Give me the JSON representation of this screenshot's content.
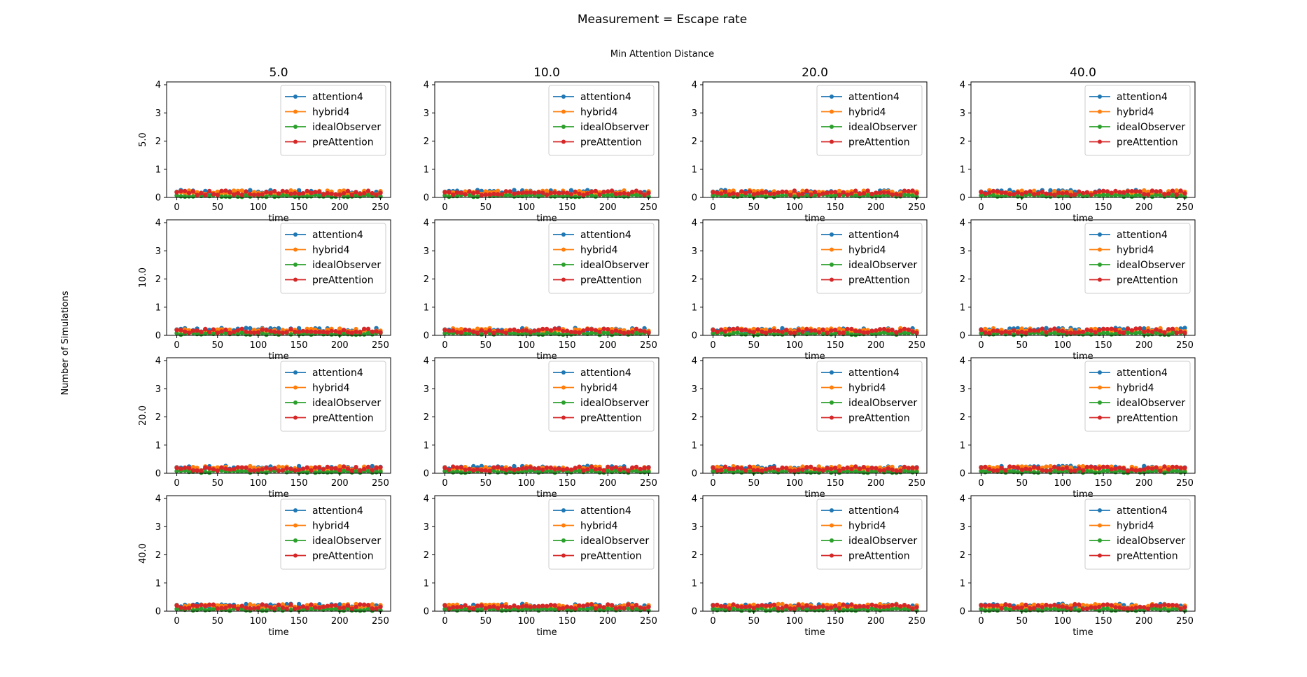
{
  "figure": {
    "suptitle": "Measurement = Escape rate",
    "column_header": "Min Attention Distance",
    "row_label": "Number of Simulations"
  },
  "chart_data": {
    "type": "line",
    "layout": "grid",
    "column_titles": [
      "5.0",
      "10.0",
      "20.0",
      "40.0"
    ],
    "row_titles": [
      "5.0",
      "10.0",
      "20.0",
      "40.0"
    ],
    "xlabel": "time",
    "xlim": [
      -12.5,
      262.5
    ],
    "ylim": [
      0,
      4.1
    ],
    "xticks": [
      0,
      50,
      100,
      150,
      200,
      250
    ],
    "yticks": [
      0,
      1,
      2,
      3,
      4
    ],
    "legend_position": "upper right",
    "series": [
      {
        "name": "attention4",
        "color": "#1f77b4"
      },
      {
        "name": "hybrid4",
        "color": "#ff7f0e"
      },
      {
        "name": "idealObserver",
        "color": "#2ca02c"
      },
      {
        "name": "preAttention",
        "color": "#d62728"
      }
    ],
    "x_sampling": {
      "start": 0,
      "end": 250,
      "step": 5
    },
    "value_summary": {
      "attention4": {
        "typical": 0.18,
        "spread": 0.08,
        "max": 0.37
      },
      "hybrid4": {
        "typical": 0.17,
        "spread": 0.08,
        "max": 0.47
      },
      "idealObserver": {
        "typical": 0.06,
        "spread": 0.04,
        "max": 0.15
      },
      "preAttention": {
        "typical": 0.16,
        "spread": 0.08,
        "max": 0.4
      }
    }
  }
}
